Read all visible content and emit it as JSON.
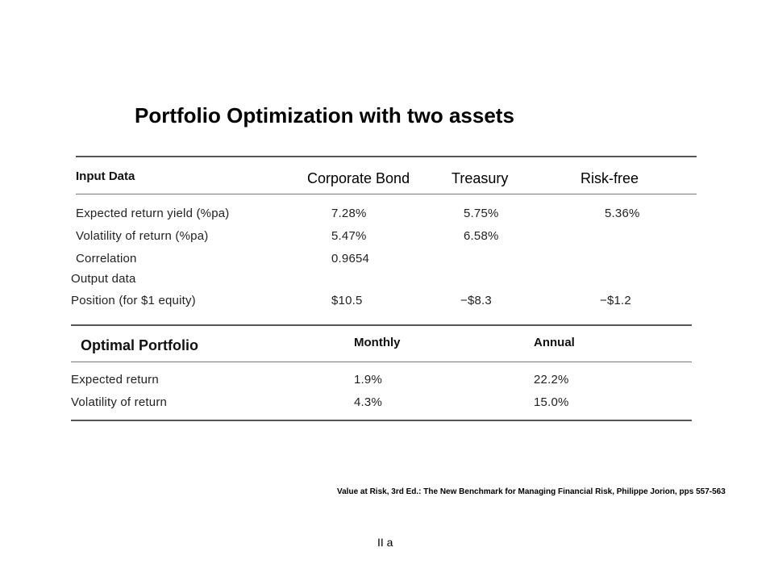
{
  "title": "Portfolio Optimization with two assets",
  "input_table": {
    "header_label": "Input Data",
    "columns": [
      "Corporate Bond",
      "Treasury",
      "Risk-free"
    ],
    "rows": [
      {
        "label": "Expected return yield (%pa)",
        "values": [
          "7.28%",
          "5.75%",
          "5.36%"
        ]
      },
      {
        "label": "Volatility of return (%pa)",
        "values": [
          "5.47%",
          "6.58%",
          ""
        ]
      },
      {
        "label": "Correlation",
        "values": [
          "0.9654",
          "",
          ""
        ]
      }
    ],
    "output_label": "Output data",
    "output_rows": [
      {
        "label": "Position (for $1 equity)",
        "values": [
          "$10.5",
          "−$8.3",
          "−$1.2"
        ]
      }
    ]
  },
  "optimal_table": {
    "header_label": "Optimal Portfolio",
    "columns": [
      "Monthly",
      "Annual"
    ],
    "rows": [
      {
        "label": "Expected return",
        "values": [
          "1.9%",
          "22.2%"
        ]
      },
      {
        "label": "Volatility of return",
        "values": [
          "4.3%",
          "15.0%"
        ]
      }
    ]
  },
  "citation": "Value at Risk, 3rd Ed.: The New Benchmark for Managing Financial Risk, Philippe Jorion, pps 557-563",
  "footer": "II a"
}
